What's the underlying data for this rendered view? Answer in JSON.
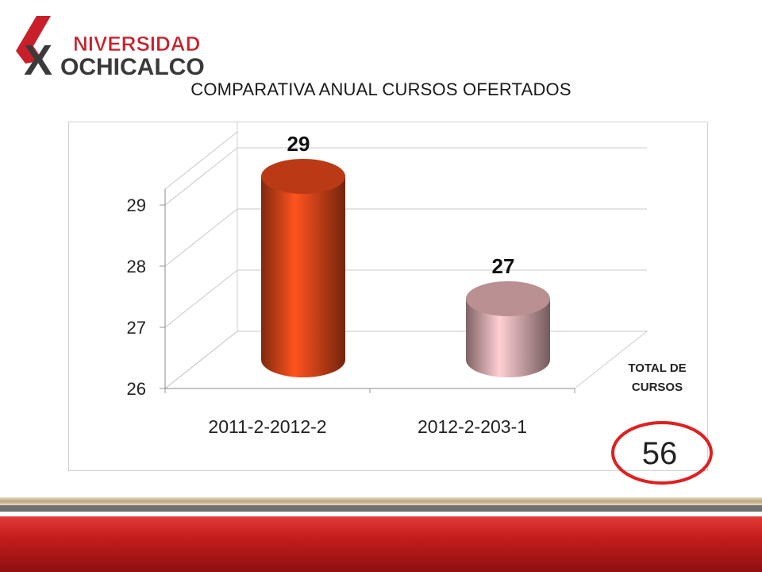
{
  "logo": {
    "line1": "NIVERSIDAD",
    "line2": "OCHICALCO",
    "mark_letter": "X",
    "colors": {
      "red": "#c8202a",
      "dark": "#3a3a3a"
    }
  },
  "total": {
    "label": "TOTAL DE CURSOS",
    "value": "56",
    "circle_color": "#e02020"
  },
  "chart_data": {
    "type": "bar",
    "style": "3d-cylinder",
    "title": "COMPARATIVA ANUAL CURSOS OFERTADOS",
    "categories": [
      "2011-2-2012-2",
      "2012-2-203-1"
    ],
    "values": [
      29,
      27
    ],
    "data_labels": [
      "29",
      "27"
    ],
    "bar_colors": [
      "#e8481a",
      "#e8b4b8"
    ],
    "ylim": [
      26,
      29
    ],
    "yticks": [
      26,
      27,
      28,
      29
    ],
    "grid": true,
    "legend": "none",
    "xlabel": "",
    "ylabel": ""
  }
}
